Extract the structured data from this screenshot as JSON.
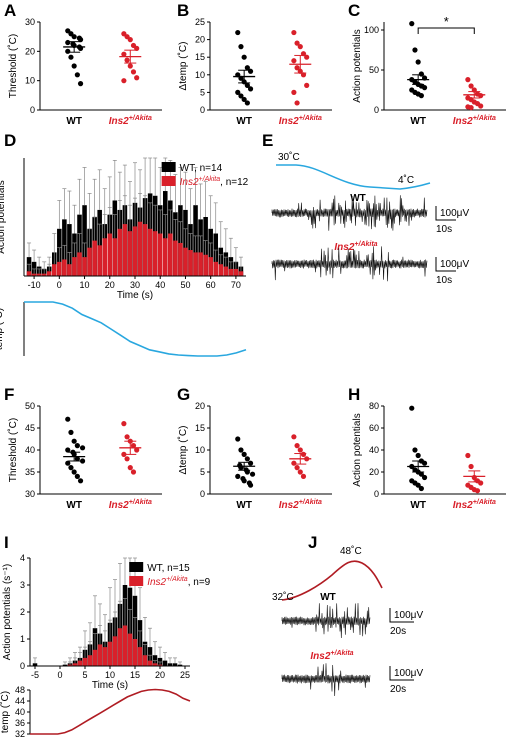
{
  "colors": {
    "wt": "#000000",
    "akita": "#d9202a",
    "temp": "#29a7df",
    "temp_dark": "#b01c23"
  },
  "labels": {
    "wt": "WT",
    "akita_main": "Ins2",
    "akita_sup": "+/Akita"
  },
  "panels": {
    "A": "A",
    "B": "B",
    "C": "C",
    "D": "D",
    "E": "E",
    "F": "F",
    "G": "G",
    "H": "H",
    "I": "I",
    "J": "J"
  },
  "panel_E": {
    "temp_start": "30˚C",
    "temp_end": "4˚C",
    "trace1_label": "WT",
    "trace2_label": "Ins2+/Akita",
    "scale_v": "100μV",
    "scale_t": "10s"
  },
  "panel_J": {
    "temp_start": "32˚C",
    "temp_peak": "48˚C",
    "trace1_label": "WT",
    "trace2_label": "Ins2+/Akita",
    "scale_v": "100μV",
    "scale_t": "20s"
  },
  "chart_data": [
    {
      "id": "A",
      "type": "scatter",
      "ylabel": "Threshold (˚C)",
      "categories": [
        "WT",
        "Ins2+/Akita"
      ],
      "ylim": [
        0,
        30
      ],
      "yticks": [
        0,
        10,
        20,
        30
      ],
      "series": [
        {
          "name": "WT",
          "mean": 21.5,
          "sem": 1.8,
          "values": [
            27,
            26,
            25,
            24.5,
            24,
            23,
            22.5,
            22,
            21.5,
            21,
            20,
            18,
            15,
            12,
            9
          ]
        },
        {
          "name": "Ins2+/Akita",
          "mean": 18.2,
          "sem": 2.2,
          "values": [
            26,
            25,
            24,
            22,
            21,
            19,
            17,
            15,
            13,
            11,
            10
          ]
        }
      ]
    },
    {
      "id": "B",
      "type": "scatter",
      "ylabel": "Δtemp (˚C)",
      "categories": [
        "WT",
        "Ins2+/Akita"
      ],
      "ylim": [
        0,
        25
      ],
      "yticks": [
        0,
        5,
        10,
        15,
        20,
        25
      ],
      "series": [
        {
          "name": "WT",
          "mean": 9.5,
          "sem": 1.8,
          "values": [
            22,
            18,
            15,
            12,
            11,
            10,
            9,
            8,
            7,
            6,
            5,
            4,
            3,
            2
          ]
        },
        {
          "name": "Ins2+/Akita",
          "mean": 13,
          "sem": 2.5,
          "values": [
            22,
            19,
            18,
            16,
            15,
            14,
            12,
            11,
            10,
            7,
            5,
            2
          ]
        }
      ]
    },
    {
      "id": "C",
      "type": "scatter",
      "ylabel": "Action potentials",
      "categories": [
        "WT",
        "Ins2+/Akita"
      ],
      "ylim": [
        0,
        110
      ],
      "yticks": [
        0,
        50,
        100
      ],
      "significance": "*",
      "series": [
        {
          "name": "WT",
          "mean": 38,
          "sem": 6,
          "values": [
            108,
            75,
            60,
            45,
            40,
            38,
            35,
            32,
            30,
            28,
            25,
            22,
            20,
            18
          ]
        },
        {
          "name": "Ins2+/Akita",
          "mean": 19,
          "sem": 4,
          "values": [
            38,
            30,
            25,
            20,
            18,
            15,
            13,
            10,
            8,
            5,
            4,
            3
          ]
        }
      ]
    },
    {
      "id": "D",
      "type": "bar",
      "ylabel": "Action potentials",
      "xlabel": "Time (s)",
      "xticks": [
        -10,
        0,
        10,
        20,
        30,
        40,
        50,
        60,
        70
      ],
      "xlim": [
        -14,
        74
      ],
      "ylim": [
        0,
        5
      ],
      "legend": [
        "WT, n=14",
        "Ins2+/Akita, n=12"
      ],
      "x": [
        -12,
        -10,
        -8,
        -6,
        -4,
        -2,
        0,
        2,
        4,
        6,
        8,
        10,
        12,
        14,
        16,
        18,
        20,
        22,
        24,
        26,
        28,
        30,
        32,
        34,
        36,
        38,
        40,
        42,
        44,
        46,
        48,
        50,
        52,
        54,
        56,
        58,
        60,
        62,
        64,
        66,
        68,
        70,
        72
      ],
      "series": [
        {
          "name": "WT",
          "values": [
            0.8,
            0.6,
            0.4,
            0.3,
            0.4,
            1.0,
            2.0,
            2.4,
            2.2,
            1.8,
            2.6,
            3.0,
            2.0,
            2.5,
            2.8,
            2.2,
            2.6,
            3.2,
            2.8,
            3.0,
            2.4,
            3.1,
            2.9,
            3.3,
            3.5,
            3.4,
            3.0,
            3.6,
            3.2,
            2.7,
            3.0,
            2.8,
            2.2,
            3.0,
            2.4,
            2.5,
            2.0,
            1.8,
            1.2,
            1.0,
            0.8,
            0.6,
            0.4
          ],
          "err": [
            0.6,
            0.5,
            0.4,
            0.3,
            0.4,
            0.8,
            1.2,
            1.3,
            1.4,
            1.2,
            1.5,
            1.6,
            1.5,
            1.6,
            1.7,
            1.5,
            1.6,
            1.7,
            1.6,
            1.7,
            1.6,
            1.7,
            1.6,
            1.7,
            1.7,
            1.7,
            1.6,
            1.7,
            1.7,
            1.6,
            1.6,
            1.6,
            1.5,
            1.6,
            1.5,
            1.5,
            1.4,
            1.3,
            1.1,
            1.0,
            0.8,
            0.6,
            0.4
          ]
        },
        {
          "name": "Ins2+/Akita",
          "values": [
            0.2,
            0.1,
            0.1,
            0.1,
            0.2,
            0.5,
            0.6,
            0.7,
            0.5,
            0.8,
            1.0,
            0.8,
            1.2,
            1.5,
            1.3,
            1.6,
            1.8,
            1.6,
            2.0,
            2.2,
            1.9,
            2.1,
            2.3,
            2.2,
            2.0,
            1.9,
            1.8,
            1.6,
            1.8,
            1.5,
            1.4,
            1.2,
            1.1,
            1.0,
            1.0,
            0.9,
            0.8,
            0.6,
            0.5,
            0.4,
            0.3,
            0.3,
            0.2
          ],
          "err": [
            0.3,
            0.2,
            0.2,
            0.2,
            0.3,
            0.5,
            0.6,
            0.6,
            0.5,
            0.6,
            0.8,
            0.6,
            0.8,
            1.0,
            0.9,
            1.0,
            1.1,
            1.0,
            1.2,
            1.2,
            1.1,
            1.2,
            1.2,
            1.2,
            1.1,
            1.1,
            1.0,
            1.0,
            1.0,
            0.9,
            0.9,
            0.8,
            0.7,
            0.7,
            0.7,
            0.6,
            0.6,
            0.5,
            0.4,
            0.4,
            0.3,
            0.3,
            0.2
          ]
        }
      ],
      "temp_ylabel": "temp (˚C)",
      "temp_curve": [
        30,
        30,
        30,
        30,
        29,
        27,
        24,
        22,
        20,
        17,
        14,
        11,
        9,
        7,
        6,
        5,
        4.5,
        4.2,
        4,
        4,
        4,
        4.5,
        5.5,
        7
      ]
    },
    {
      "id": "F",
      "type": "scatter",
      "ylabel": "Threshold (˚C)",
      "categories": [
        "WT",
        "Ins2+/Akita"
      ],
      "ylim": [
        30,
        50
      ],
      "yticks": [
        30,
        35,
        40,
        45,
        50
      ],
      "series": [
        {
          "name": "WT",
          "mean": 38.5,
          "sem": 1.0,
          "values": [
            47,
            44,
            42,
            41,
            40.5,
            40,
            39.5,
            39,
            38,
            37.5,
            37,
            36,
            35,
            34,
            33
          ]
        },
        {
          "name": "Ins2+/Akita",
          "mean": 40.5,
          "sem": 1.5,
          "values": [
            46,
            43,
            42,
            41,
            40,
            39,
            38,
            36,
            35
          ]
        }
      ]
    },
    {
      "id": "G",
      "type": "scatter",
      "ylabel": "Δtemp (˚C)",
      "categories": [
        "WT",
        "Ins2+/Akita"
      ],
      "ylim": [
        0,
        20
      ],
      "yticks": [
        0,
        5,
        10,
        15,
        20
      ],
      "series": [
        {
          "name": "WT",
          "mean": 6.3,
          "sem": 0.9,
          "values": [
            12.5,
            10,
            9,
            8,
            7,
            6.5,
            6,
            5.5,
            5,
            4.5,
            4,
            3.5,
            3,
            2.5,
            2
          ]
        },
        {
          "name": "Ins2+/Akita",
          "mean": 8,
          "sem": 1.2,
          "values": [
            13,
            11,
            10,
            9,
            8,
            7,
            6,
            5,
            4
          ]
        }
      ]
    },
    {
      "id": "H",
      "type": "scatter",
      "ylabel": "Action potentials",
      "categories": [
        "WT",
        "Ins2+/Akita"
      ],
      "ylim": [
        0,
        80
      ],
      "yticks": [
        0,
        20,
        40,
        60,
        80
      ],
      "series": [
        {
          "name": "WT",
          "mean": 25,
          "sem": 5,
          "values": [
            78,
            40,
            35,
            30,
            28,
            25,
            22,
            20,
            18,
            15,
            12,
            10,
            8,
            5
          ]
        },
        {
          "name": "Ins2+/Akita",
          "mean": 16,
          "sem": 5,
          "values": [
            35,
            25,
            15,
            12,
            10,
            8,
            6,
            4,
            3
          ]
        }
      ]
    },
    {
      "id": "I",
      "type": "bar",
      "ylabel": "Action potentials (s⁻¹)",
      "xlabel": "Time (s)",
      "xticks": [
        -5,
        0,
        5,
        10,
        15,
        20,
        25
      ],
      "xlim": [
        -6,
        26
      ],
      "ylim": [
        0,
        4
      ],
      "yticks": [
        0,
        1,
        2,
        3,
        4
      ],
      "legend": [
        "WT, n=15",
        "Ins2+/Akita, n=9"
      ],
      "x": [
        -5,
        -4,
        -3,
        -2,
        -1,
        0,
        1,
        2,
        3,
        4,
        5,
        6,
        7,
        8,
        9,
        10,
        11,
        12,
        13,
        14,
        15,
        16,
        17,
        18,
        19,
        20,
        21,
        22,
        23,
        24,
        25
      ],
      "series": [
        {
          "name": "WT",
          "values": [
            0.1,
            0,
            0,
            0,
            0,
            0,
            0.05,
            0.1,
            0.2,
            0.3,
            0.6,
            0.8,
            1.4,
            1.2,
            0.9,
            1.6,
            1.8,
            2.3,
            3.0,
            2.9,
            2.6,
            1.7,
            0.9,
            0.7,
            0.4,
            0.3,
            0.2,
            0.1,
            0.1,
            0.05,
            0
          ],
          "err": [
            0.2,
            0,
            0,
            0,
            0,
            0,
            0.1,
            0.2,
            0.3,
            0.4,
            0.7,
            0.8,
            1.2,
            1.1,
            1.0,
            1.3,
            1.4,
            1.5,
            1.5,
            1.5,
            1.4,
            1.2,
            0.9,
            0.7,
            0.5,
            0.4,
            0.3,
            0.2,
            0.2,
            0.1,
            0
          ]
        },
        {
          "name": "Ins2+/Akita",
          "values": [
            0,
            0,
            0,
            0,
            0,
            0,
            0,
            0.05,
            0.1,
            0.2,
            0.3,
            0.4,
            0.6,
            0.8,
            0.7,
            0.9,
            1.1,
            1.4,
            1.5,
            1.2,
            1.0,
            0.7,
            0.4,
            0.2,
            0.1,
            0.05,
            0,
            0,
            0,
            0,
            0
          ],
          "err": [
            0,
            0,
            0,
            0,
            0,
            0,
            0,
            0.1,
            0.2,
            0.3,
            0.4,
            0.5,
            0.6,
            0.7,
            0.6,
            0.8,
            0.9,
            1.0,
            1.0,
            0.9,
            0.8,
            0.6,
            0.4,
            0.2,
            0.1,
            0.1,
            0,
            0,
            0,
            0,
            0
          ]
        }
      ],
      "temp_ylabel": "temp (˚C)",
      "temp_yticks": [
        32,
        36,
        40,
        44,
        48
      ],
      "temp_curve": [
        32,
        32,
        32,
        32,
        32,
        32.5,
        33.5,
        35,
        36.5,
        38,
        39.5,
        41,
        42.5,
        44,
        45.5,
        46.5,
        47.5,
        48,
        48.2,
        48,
        47.5,
        46.5,
        45,
        44
      ]
    }
  ]
}
